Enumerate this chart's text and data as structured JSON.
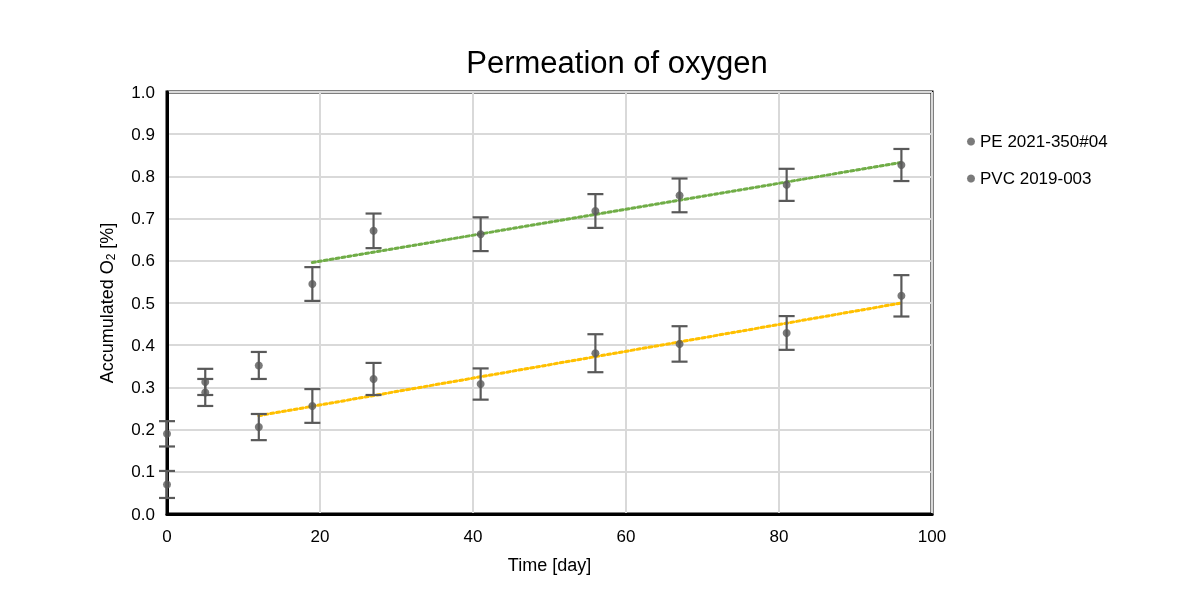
{
  "chart_data": {
    "type": "scatter",
    "title": "Permeation of oxygen",
    "xlabel": "Time [day]",
    "ylabel": "Accumulated O$_{2}$ [%]",
    "x": [
      0,
      5,
      12,
      19,
      27,
      41,
      56,
      67,
      81,
      96
    ],
    "series": [
      {
        "name": "PE 2021-350#04",
        "color": "#595959",
        "values": [
          0.19,
          0.313,
          0.352,
          0.545,
          0.671,
          0.663,
          0.718,
          0.755,
          0.78,
          0.827
        ],
        "errors": [
          0.03,
          0.031,
          0.032,
          0.04,
          0.041,
          0.04,
          0.04,
          0.04,
          0.038,
          0.038
        ]
      },
      {
        "name": "PVC 2019-003",
        "color": "#595959",
        "values": [
          0.07,
          0.288,
          0.206,
          0.256,
          0.32,
          0.308,
          0.381,
          0.403,
          0.429,
          0.517
        ],
        "errors": [
          0.032,
          0.032,
          0.031,
          0.04,
          0.038,
          0.037,
          0.045,
          0.042,
          0.04,
          0.049
        ]
      },
      {
        "type": "line",
        "color": "#70ad47",
        "line_style": "dotted",
        "marker": "none",
        "x": [
          19,
          96
        ],
        "values": [
          0.596,
          0.833
        ]
      },
      {
        "type": "line",
        "color": "#ffc000",
        "line_style": "dotted",
        "marker": "none",
        "x": [
          12,
          96
        ],
        "values": [
          0.233,
          0.5
        ]
      }
    ],
    "xlim": [
      0,
      100
    ],
    "xticks": [
      0,
      20,
      40,
      60,
      80,
      100
    ],
    "ylim": [
      0,
      1
    ],
    "yticks": [
      {
        "value": 0,
        "label": "0.0"
      },
      {
        "value": 0.1,
        "label": "0.1"
      },
      {
        "value": 0.2,
        "label": "0.2"
      },
      {
        "value": 0.3,
        "label": "0.3"
      },
      {
        "value": 0.4,
        "label": "0.4"
      },
      {
        "value": 0.5,
        "label": "0.5"
      },
      {
        "value": 0.6,
        "label": "0.6"
      },
      {
        "value": 0.7,
        "label": "0.7"
      },
      {
        "value": 0.8,
        "label": "0.8"
      },
      {
        "value": 0.9,
        "label": "0.9"
      },
      {
        "value": 1,
        "label": "1.0"
      }
    ],
    "grid": true,
    "legend": "right",
    "marker": "circle"
  }
}
